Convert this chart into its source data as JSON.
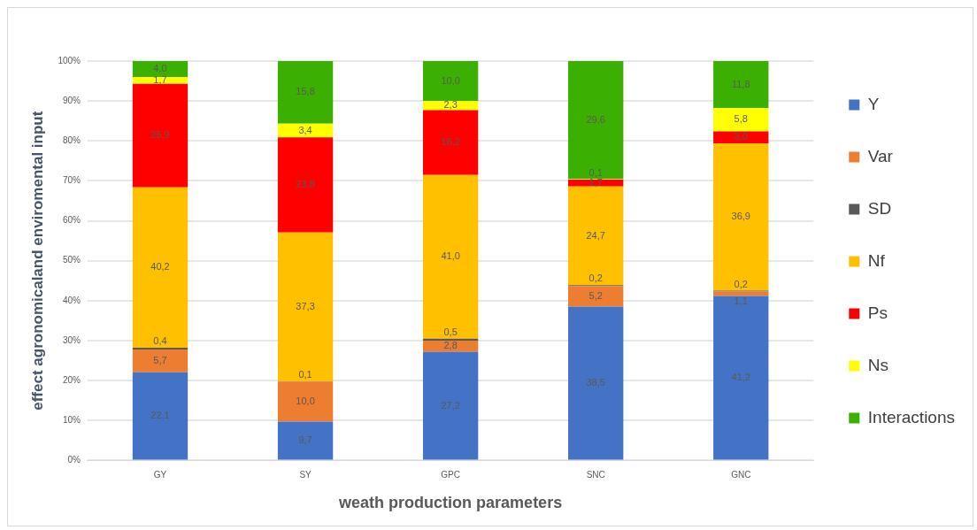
{
  "chart_data": {
    "type": "bar",
    "stacked": true,
    "xlabel": "weath production parameters",
    "ylabel": "effect agronomicaland enviromental input",
    "categories": [
      "GY",
      "SY",
      "GPC",
      "SNC",
      "GNC"
    ],
    "ylim": [
      0,
      100
    ],
    "yticks": [
      {
        "value": 0,
        "label": "0%"
      },
      {
        "value": 10,
        "label": "10%"
      },
      {
        "value": 20,
        "label": "20%"
      },
      {
        "value": 30,
        "label": "30%"
      },
      {
        "value": 40,
        "label": "40%"
      },
      {
        "value": 50,
        "label": "50%"
      },
      {
        "value": 60,
        "label": "60%"
      },
      {
        "value": 70,
        "label": "70%"
      },
      {
        "value": 80,
        "label": "80%"
      },
      {
        "value": 90,
        "label": "90%"
      },
      {
        "value": 100,
        "label": "100%"
      }
    ],
    "grid": "y",
    "legend": "right",
    "series": [
      {
        "name": "Y",
        "color": "#4472c4",
        "values": [
          22.1,
          9.7,
          27.2,
          38.5,
          41.2
        ],
        "value_labels": [
          "22,1",
          "9,7",
          "27,2",
          "38,5",
          "41,2"
        ]
      },
      {
        "name": "Var",
        "color": "#ed7d31",
        "values": [
          5.7,
          10.0,
          2.8,
          5.2,
          1.1
        ],
        "value_labels": [
          "5,7",
          "10,0",
          "2,8",
          "5,2",
          "1,1"
        ]
      },
      {
        "name": "SD",
        "color": "#595959",
        "values": [
          0.4,
          0.1,
          0.5,
          0.2,
          0.2
        ],
        "value_labels": [
          "0,4",
          "0,1",
          "0,5",
          "0,2",
          "0,2"
        ]
      },
      {
        "name": "Nf",
        "color": "#ffc000",
        "values": [
          40.2,
          37.3,
          41.0,
          24.7,
          36.9
        ],
        "value_labels": [
          "40,2",
          "37,3",
          "41,0",
          "24,7",
          "36,9"
        ]
      },
      {
        "name": "Ps",
        "color": "#ff0000",
        "values": [
          25.9,
          23.8,
          16.2,
          1.7,
          3.0
        ],
        "value_labels": [
          "25,9",
          "23,8",
          "16,2",
          "1,7",
          "3,0"
        ]
      },
      {
        "name": "Ns",
        "color": "#ffff00",
        "values": [
          1.7,
          3.4,
          2.3,
          0.1,
          5.8
        ],
        "value_labels": [
          "1,7",
          "3,4",
          "2,3",
          "0,1",
          "5,8"
        ]
      },
      {
        "name": "Interactions",
        "color": "#3cb000",
        "values": [
          4.0,
          15.8,
          10.0,
          29.6,
          11.8
        ],
        "value_labels": [
          "4,0",
          "15,8",
          "10,0",
          "29,6",
          "11,8"
        ]
      }
    ]
  }
}
